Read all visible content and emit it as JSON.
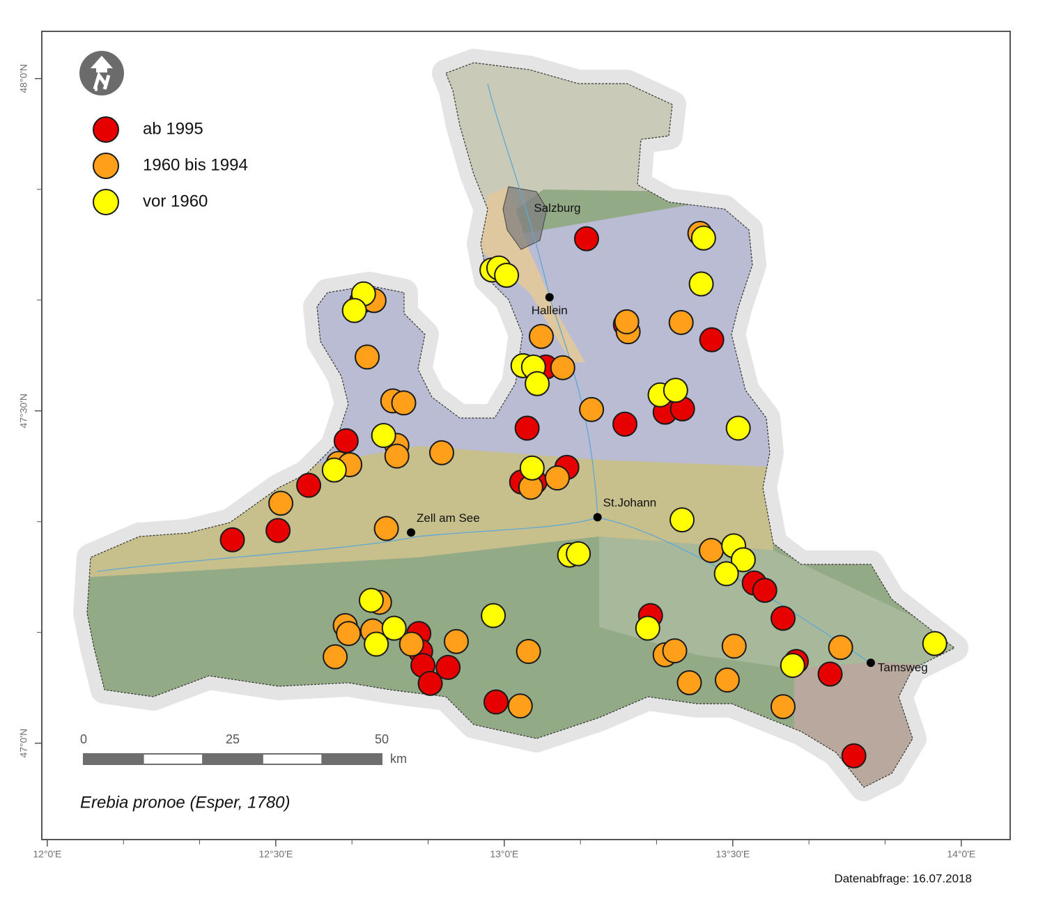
{
  "chart_data": {
    "type": "map",
    "subtitle": "Erebia pronoe (Esper, 1780)",
    "footer": "Datenabfrage: 16.07.2018",
    "xlim": [
      11.988,
      14.107
    ],
    "ylim": [
      46.855,
      48.071
    ],
    "xticks": [
      {
        "value": 12,
        "label": "12°0'E"
      },
      {
        "value": 12.5,
        "label": "12°30'E"
      },
      {
        "value": 13,
        "label": "13°0'E"
      },
      {
        "value": 13.5,
        "label": "13°30'E"
      },
      {
        "value": 14,
        "label": "14°0'E"
      }
    ],
    "xticks_minor": [
      12.1667,
      12.3333,
      12.6667,
      12.8333,
      13.1667,
      13.3333,
      13.6667,
      13.8333
    ],
    "yticks": [
      {
        "value": 48,
        "label": "48°0'N"
      },
      {
        "value": 47.5,
        "label": "47°30'N"
      },
      {
        "value": 47,
        "label": "47°0'N"
      }
    ],
    "yticks_minor": [
      47.8333,
      47.6667,
      47.3333,
      47.1667
    ],
    "scale_bar": {
      "ticks": [
        0,
        25,
        50
      ],
      "unit": "km"
    },
    "region_label": {
      "text": "Salzburg",
      "lon": 13.116,
      "lat": 47.804
    },
    "cities": [
      {
        "name": "Hallein",
        "lon": 13.099,
        "lat": 47.671
      },
      {
        "name": "St.Johann",
        "lon": 13.204,
        "lat": 47.34
      },
      {
        "name": "Zell am See",
        "lon": 12.796,
        "lat": 47.317
      },
      {
        "name": "Tamsweg",
        "lon": 13.802,
        "lat": 47.121
      }
    ],
    "series": [
      {
        "name": "ab 1995",
        "color": "#e60000",
        "points": [
          [
            13.18,
            47.759
          ],
          [
            12.688,
            47.665
          ],
          [
            13.265,
            47.63
          ],
          [
            13.454,
            47.607
          ],
          [
            13.091,
            47.566
          ],
          [
            13.352,
            47.498
          ],
          [
            13.39,
            47.503
          ],
          [
            13.264,
            47.48
          ],
          [
            13.05,
            47.474
          ],
          [
            12.654,
            47.455
          ],
          [
            13.137,
            47.415
          ],
          [
            13.038,
            47.393
          ],
          [
            13.067,
            47.393
          ],
          [
            12.572,
            47.388
          ],
          [
            12.505,
            47.32
          ],
          [
            12.405,
            47.306
          ],
          [
            13.547,
            47.241
          ],
          [
            13.57,
            47.23
          ],
          [
            13.32,
            47.192
          ],
          [
            13.61,
            47.188
          ],
          [
            12.813,
            47.165
          ],
          [
            12.817,
            47.138
          ],
          [
            12.822,
            47.117
          ],
          [
            12.838,
            47.09
          ],
          [
            12.877,
            47.114
          ],
          [
            13.639,
            47.123
          ],
          [
            13.713,
            47.104
          ],
          [
            12.982,
            47.062
          ],
          [
            13.765,
            46.981
          ]
        ]
      },
      {
        "name": "1960 bis 1994",
        "color": "#ff9f1a",
        "points": [
          [
            13.428,
            47.767
          ],
          [
            12.715,
            47.666
          ],
          [
            13.271,
            47.619
          ],
          [
            13.268,
            47.634
          ],
          [
            13.387,
            47.633
          ],
          [
            13.081,
            47.612
          ],
          [
            12.7,
            47.581
          ],
          [
            13.128,
            47.565
          ],
          [
            12.756,
            47.515
          ],
          [
            12.78,
            47.512
          ],
          [
            13.191,
            47.502
          ],
          [
            12.765,
            47.448
          ],
          [
            12.765,
            47.432
          ],
          [
            12.863,
            47.437
          ],
          [
            12.637,
            47.421
          ],
          [
            12.662,
            47.419
          ],
          [
            13.116,
            47.399
          ],
          [
            13.058,
            47.385
          ],
          [
            12.511,
            47.361
          ],
          [
            12.742,
            47.323
          ],
          [
            13.453,
            47.29
          ],
          [
            12.727,
            47.212
          ],
          [
            12.652,
            47.177
          ],
          [
            12.659,
            47.165
          ],
          [
            12.712,
            47.169
          ],
          [
            12.797,
            47.149
          ],
          [
            12.895,
            47.153
          ],
          [
            12.63,
            47.13
          ],
          [
            13.053,
            47.138
          ],
          [
            13.352,
            47.133
          ],
          [
            13.373,
            47.139
          ],
          [
            13.503,
            47.146
          ],
          [
            13.736,
            47.144
          ],
          [
            13.405,
            47.091
          ],
          [
            13.488,
            47.095
          ],
          [
            13.035,
            47.056
          ],
          [
            13.61,
            47.055
          ]
        ]
      },
      {
        "name": "vor 1960",
        "color": "#ffff00",
        "points": [
          [
            12.973,
            47.712
          ],
          [
            12.988,
            47.715
          ],
          [
            13.005,
            47.704
          ],
          [
            13.436,
            47.76
          ],
          [
            13.431,
            47.691
          ],
          [
            12.692,
            47.676
          ],
          [
            12.672,
            47.651
          ],
          [
            13.041,
            47.568
          ],
          [
            13.064,
            47.566
          ],
          [
            13.072,
            47.541
          ],
          [
            13.341,
            47.524
          ],
          [
            13.375,
            47.531
          ],
          [
            13.512,
            47.474
          ],
          [
            12.736,
            47.463
          ],
          [
            12.628,
            47.411
          ],
          [
            13.061,
            47.414
          ],
          [
            13.389,
            47.336
          ],
          [
            13.502,
            47.297
          ],
          [
            13.523,
            47.276
          ],
          [
            13.486,
            47.255
          ],
          [
            13.143,
            47.283
          ],
          [
            13.162,
            47.285
          ],
          [
            12.709,
            47.215
          ],
          [
            12.976,
            47.192
          ],
          [
            13.314,
            47.173
          ],
          [
            12.759,
            47.173
          ],
          [
            12.72,
            47.149
          ],
          [
            13.631,
            47.117
          ],
          [
            13.942,
            47.15
          ]
        ]
      }
    ]
  }
}
